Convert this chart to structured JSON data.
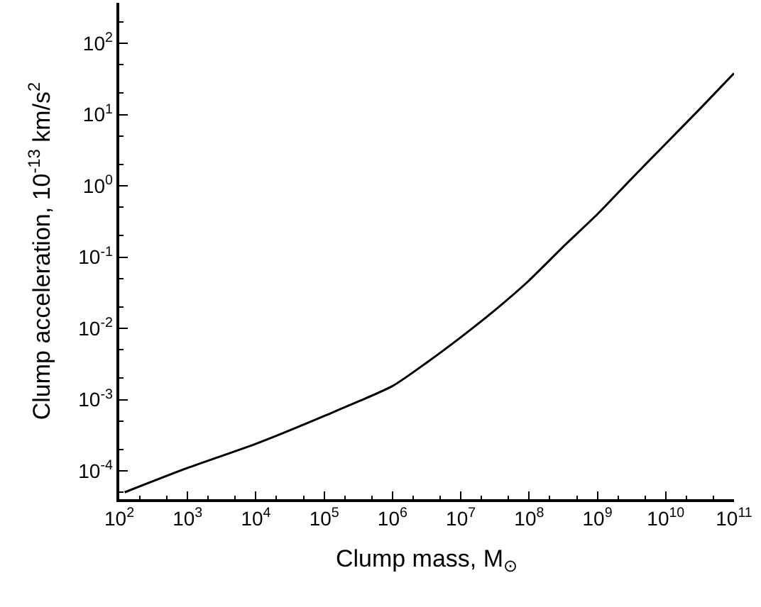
{
  "chart_data": {
    "type": "line",
    "xlabel": "Clump mass, M$_{⊙}$",
    "ylabel": "Clump acceleration, 10$^{-13}$ km/s$^{2}$",
    "log": "xy",
    "marker": "none",
    "line_style": "solid",
    "xlim": [
      100,
      100000000000.0
    ],
    "ylim": [
      4e-05,
      370
    ],
    "xticks": [
      {
        "value": 100.0,
        "label": "10$^{2}$"
      },
      {
        "value": 1000.0,
        "label": "10$^{3}$"
      },
      {
        "value": 10000.0,
        "label": "10$^{4}$"
      },
      {
        "value": 100000.0,
        "label": "10$^{5}$"
      },
      {
        "value": 1000000.0,
        "label": "10$^{6}$"
      },
      {
        "value": 10000000.0,
        "label": "10$^{7}$"
      },
      {
        "value": 100000000.0,
        "label": "10$^{8}$"
      },
      {
        "value": 1000000000.0,
        "label": "10$^{9}$"
      },
      {
        "value": 10000000000.0,
        "label": "10$^{10}$"
      },
      {
        "value": 100000000000.0,
        "label": "10$^{11}$"
      }
    ],
    "yticks": [
      {
        "value": 0.0001,
        "label": "10$^{-4}$"
      },
      {
        "value": 0.001,
        "label": "10$^{-3}$"
      },
      {
        "value": 0.01,
        "label": "10$^{-2}$"
      },
      {
        "value": 0.1,
        "label": "10$^{-1}$"
      },
      {
        "value": 1,
        "label": "10$^{0}$"
      },
      {
        "value": 10,
        "label": "10$^{1}$"
      },
      {
        "value": 100,
        "label": "10$^{2}$"
      }
    ],
    "x": [
      120,
      1000.0,
      10000.0,
      100000.0,
      1000000.0,
      3160000.0,
      10000000.0,
      31600000.0,
      100000000.0,
      316000000.0,
      1000000000.0,
      3160000000.0,
      10000000000.0,
      31600000000.0,
      100000000000.0
    ],
    "series": [
      {
        "color": "#000000",
        "values": [
          5e-05,
          0.00011,
          0.00024,
          0.00059,
          0.00155,
          0.0033,
          0.0075,
          0.018,
          0.047,
          0.14,
          0.4,
          1.26,
          3.9,
          12,
          38
        ]
      }
    ]
  }
}
